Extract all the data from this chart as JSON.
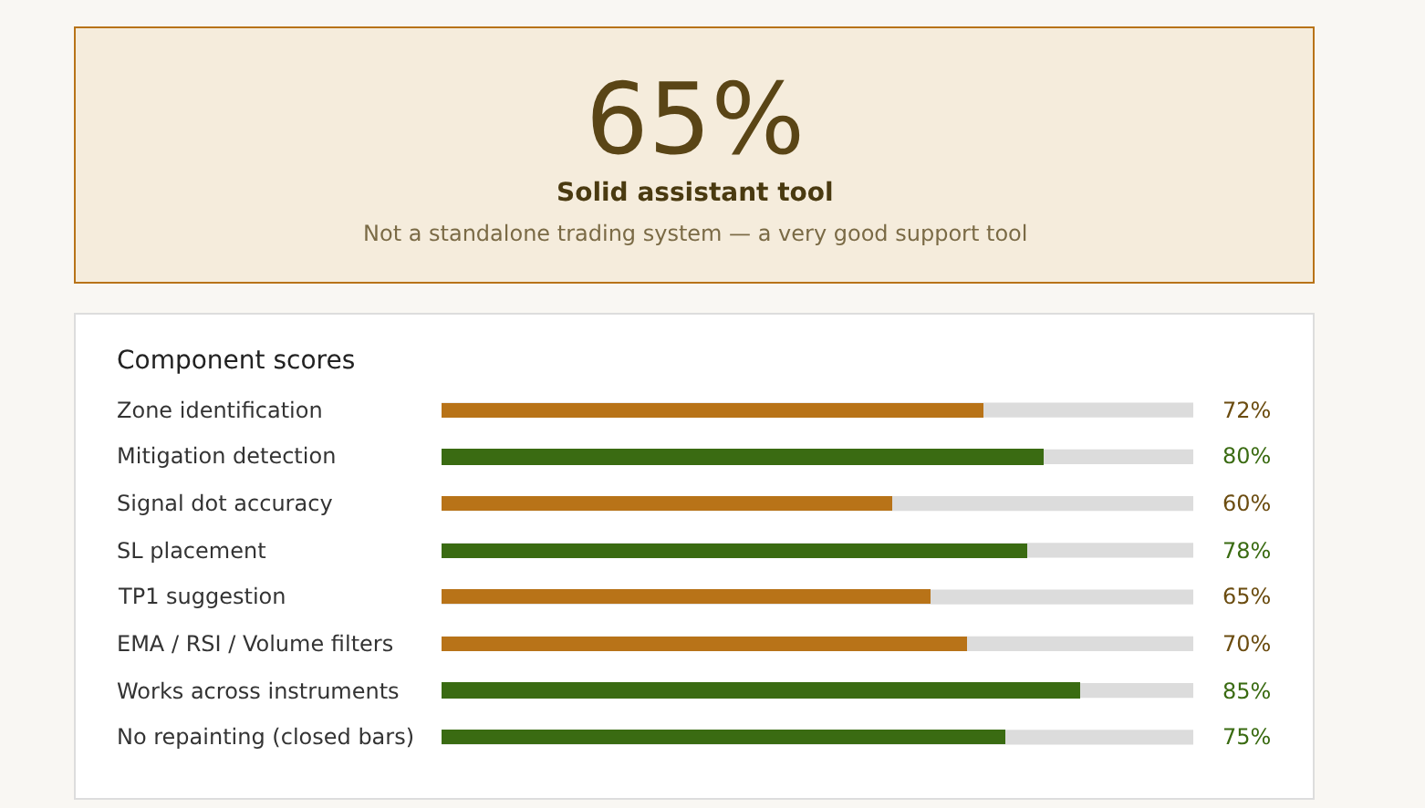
{
  "chart_data": {
    "type": "bar",
    "orientation": "horizontal",
    "title": "Component scores",
    "annotations": [
      "65%",
      "Solid assistant tool",
      "Not a standalone trading system — a very good support tool"
    ],
    "categories": [
      "Zone identification",
      "Mitigation detection",
      "Signal dot accuracy",
      "SL placement",
      "TP1 suggestion",
      "EMA / RSI / Volume filters",
      "Works across instruments",
      "No repainting (closed bars)"
    ],
    "values": [
      72,
      80,
      60,
      78,
      65,
      70,
      85,
      75
    ],
    "colors": [
      "#b87318",
      "#3a6b12",
      "#b87318",
      "#3a6b12",
      "#b87318",
      "#b87318",
      "#3a6b12",
      "#3a6b12"
    ],
    "value_labels": [
      "72%",
      "80%",
      "60%",
      "78%",
      "65%",
      "70%",
      "85%",
      "75%"
    ],
    "xlim": [
      0,
      100
    ],
    "tick_labels": "y",
    "grid": false
  }
}
